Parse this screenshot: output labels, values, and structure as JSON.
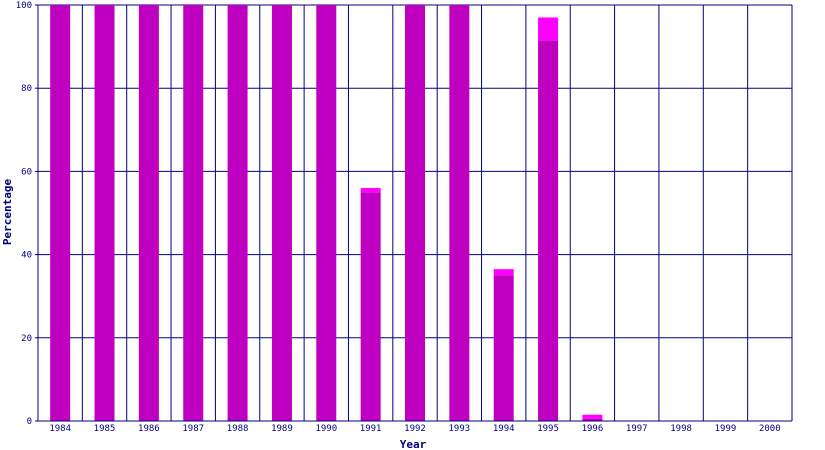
{
  "chart_data": {
    "type": "bar",
    "stacked": true,
    "title": "",
    "xlabel": "Year",
    "ylabel": "Percentage",
    "ylim": [
      0,
      100
    ],
    "yticks": [
      0,
      20,
      40,
      60,
      80,
      100
    ],
    "grid": true,
    "legend": "none",
    "categories": [
      "1984",
      "1985",
      "1986",
      "1987",
      "1988",
      "1989",
      "1990",
      "1991",
      "1992",
      "1993",
      "1994",
      "1995",
      "1996",
      "1997",
      "1998",
      "1999",
      "2000"
    ],
    "series": [
      {
        "color": "#c000c0",
        "values": [
          100,
          100,
          100,
          100,
          100,
          100,
          100,
          55,
          100,
          100,
          35,
          91.5,
          0.5,
          0,
          0,
          0,
          0
        ]
      },
      {
        "color": "#ff00ff",
        "values": [
          0,
          0,
          0,
          0,
          0,
          0,
          0,
          1,
          0,
          0,
          1.5,
          5.5,
          1,
          0,
          0,
          0,
          0
        ]
      }
    ],
    "colors": {
      "axis": "#000080",
      "grid": "#000080",
      "background": "#ffffff"
    }
  }
}
